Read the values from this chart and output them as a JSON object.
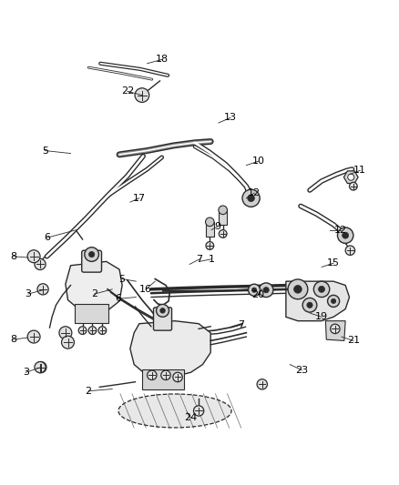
{
  "bg_color": "#ffffff",
  "line_color": "#2a2a2a",
  "label_color": "#000000",
  "callouts": [
    [
      1,
      0.5,
      0.548,
      0.53,
      0.542
    ],
    [
      2,
      0.28,
      0.618,
      0.235,
      0.63
    ],
    [
      2,
      0.28,
      0.87,
      0.22,
      0.875
    ],
    [
      3,
      0.105,
      0.62,
      0.068,
      0.63
    ],
    [
      3,
      0.1,
      0.815,
      0.062,
      0.828
    ],
    [
      5,
      0.175,
      0.275,
      0.11,
      0.268
    ],
    [
      5,
      0.34,
      0.598,
      0.305,
      0.592
    ],
    [
      6,
      0.19,
      0.468,
      0.115,
      0.488
    ],
    [
      6,
      0.34,
      0.638,
      0.295,
      0.642
    ],
    [
      7,
      0.475,
      0.555,
      0.5,
      0.542
    ],
    [
      7,
      0.58,
      0.715,
      0.605,
      0.708
    ],
    [
      8,
      0.068,
      0.538,
      0.03,
      0.535
    ],
    [
      8,
      0.068,
      0.74,
      0.03,
      0.745
    ],
    [
      9,
      0.53,
      0.468,
      0.545,
      0.46
    ],
    [
      10,
      0.618,
      0.305,
      0.648,
      0.295
    ],
    [
      11,
      0.878,
      0.328,
      0.905,
      0.318
    ],
    [
      12,
      0.618,
      0.388,
      0.638,
      0.375
    ],
    [
      12,
      0.828,
      0.468,
      0.855,
      0.468
    ],
    [
      13,
      0.548,
      0.198,
      0.578,
      0.185
    ],
    [
      15,
      0.808,
      0.562,
      0.838,
      0.552
    ],
    [
      16,
      0.388,
      0.598,
      0.365,
      0.618
    ],
    [
      17,
      0.325,
      0.398,
      0.348,
      0.388
    ],
    [
      18,
      0.368,
      0.048,
      0.405,
      0.038
    ],
    [
      19,
      0.778,
      0.678,
      0.808,
      0.688
    ],
    [
      20,
      0.658,
      0.618,
      0.648,
      0.632
    ],
    [
      21,
      0.858,
      0.738,
      0.888,
      0.748
    ],
    [
      22,
      0.355,
      0.128,
      0.318,
      0.118
    ],
    [
      23,
      0.728,
      0.808,
      0.758,
      0.822
    ],
    [
      24,
      0.468,
      0.928,
      0.478,
      0.942
    ]
  ]
}
